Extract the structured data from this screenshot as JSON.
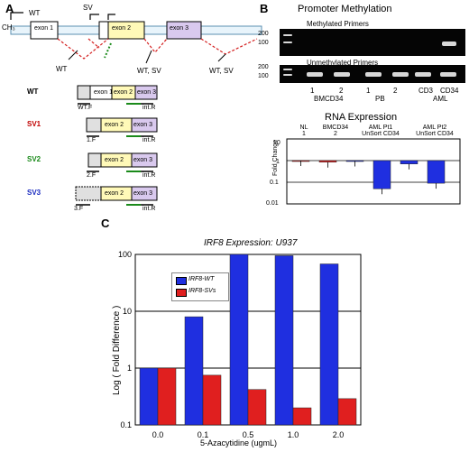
{
  "panel_a": {
    "label": "A",
    "top_labels": {
      "cm": "CH₃",
      "wt": "WT",
      "sv": "SV"
    },
    "exons": [
      "exon 1",
      "exon 2",
      "exon 3"
    ],
    "junction_labels": [
      "WT",
      "WT, SV",
      "WT, SV"
    ],
    "isoforms": [
      {
        "name": "WT",
        "color": "#000000",
        "exons": [
          "exon 1",
          "exon 2",
          "exon 3"
        ],
        "fwd": "WT.F",
        "rev": "int.R"
      },
      {
        "name": "SV1",
        "color": "#c00000",
        "exons": [
          "exon 2",
          "exon 3"
        ],
        "fwd": "1.F",
        "rev": "int.R"
      },
      {
        "name": "SV2",
        "color": "#1a8a1a",
        "exons": [
          "exon 2",
          "exon 3"
        ],
        "fwd": "2.F",
        "rev": "int.R"
      },
      {
        "name": "SV3",
        "color": "#1a2bc0",
        "exons": [
          "exon 2",
          "exon 3"
        ],
        "fwd": "3.F",
        "rev": "int.R"
      }
    ]
  },
  "panel_b": {
    "label": "B",
    "title": "Promoter Methylation",
    "methylated_label": "Methylated Primers",
    "unmethylated_label": "Unmethylated Primers",
    "bp_ticks": [
      "200",
      "100"
    ],
    "lane_numbers": [
      "1",
      "2",
      "1",
      "2"
    ],
    "lane_groups": [
      "BMCD34",
      "PB",
      "CD3",
      "CD34",
      "AML"
    ],
    "rna": {
      "title": "RNA Expression",
      "ylabel": "Fold Change",
      "yticks": [
        "10",
        "1",
        "0.1",
        "0.01"
      ],
      "group_labels": [
        "NL\n1",
        "BMCD34\n2",
        "AML Pt1\nUnSort CD34",
        "AML Pt2\nUnSort CD34"
      ]
    }
  },
  "panel_c": {
    "label": "C",
    "chart_data": {
      "type": "bar",
      "title": "IRF8 Expression: U937",
      "xlabel": "5-Azacytidine (ugmL)",
      "ylabel": "Log ( Fold Difference )",
      "yscale": "log",
      "ylim": [
        0.1,
        100
      ],
      "yticks": [
        "100",
        "10",
        "1",
        "0.1"
      ],
      "categories": [
        "0.0",
        "0.1",
        "0.5",
        "1.0",
        "2.0"
      ],
      "series": [
        {
          "name": "IRF8-WT",
          "color": "#1f2fe0",
          "values": [
            1,
            8,
            100,
            95,
            68
          ]
        },
        {
          "name": "IRF8-SVs",
          "color": "#e01f1f",
          "values": [
            1,
            0.75,
            0.42,
            0.2,
            0.29
          ]
        }
      ],
      "legend": "top-left",
      "grid": true
    }
  },
  "panel_b_rna_data": {
    "type": "bar",
    "yscale": "log",
    "ylim": [
      0.01,
      10
    ],
    "series": [
      {
        "name": "red",
        "color": "#e01f1f",
        "values": [
          1,
          0.85
        ]
      },
      {
        "name": "blue",
        "color": "#1f2fe0",
        "values": [
          0.95,
          0.05,
          0.7,
          0.09
        ]
      }
    ]
  }
}
